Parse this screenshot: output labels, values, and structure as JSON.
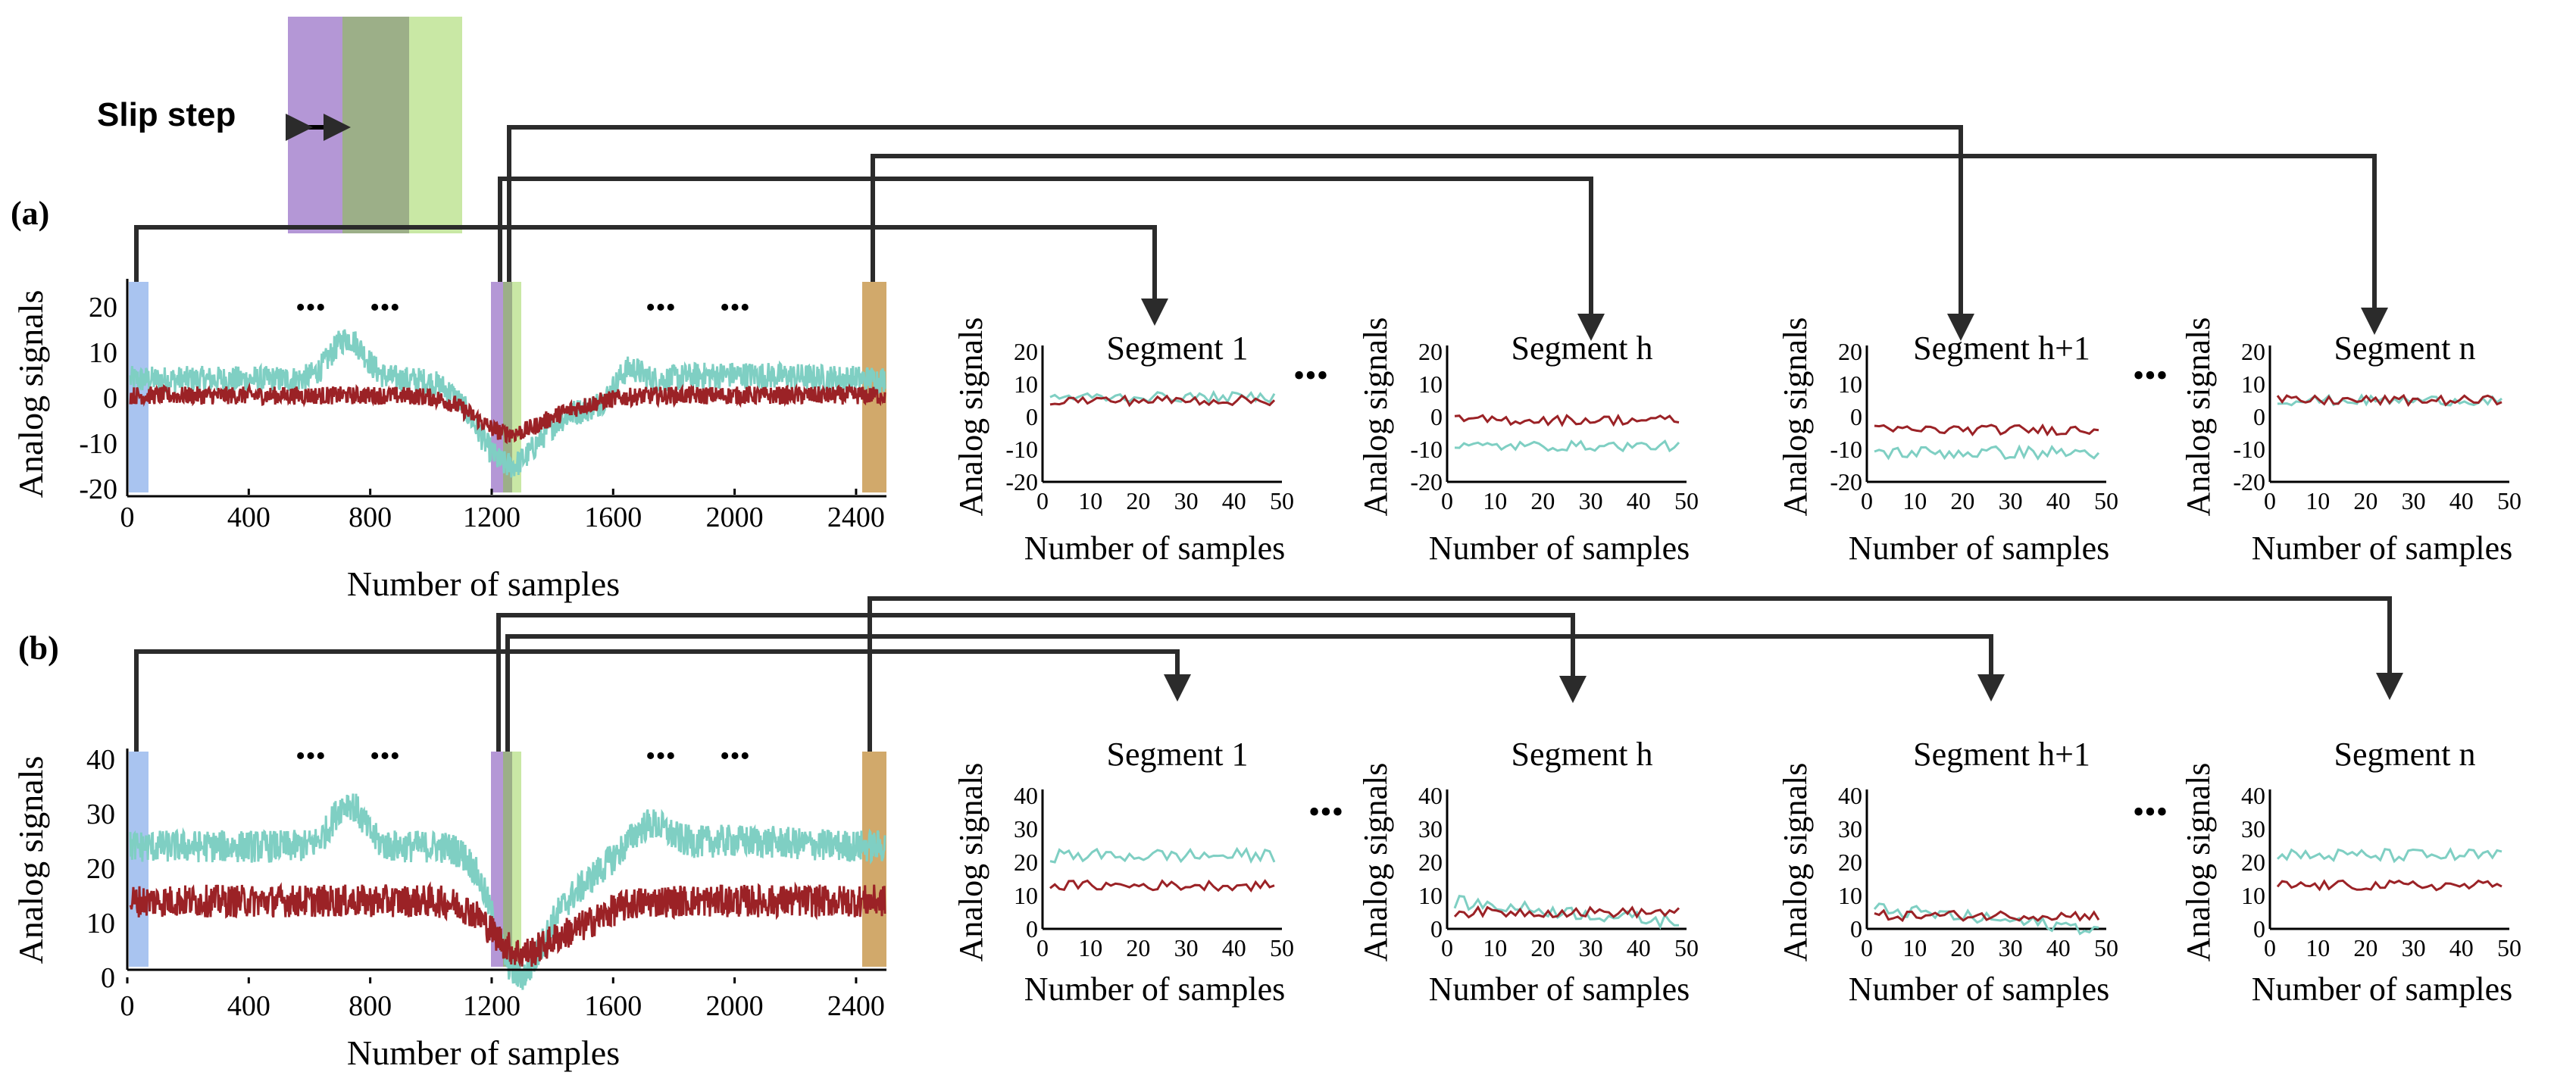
{
  "legend_note": {
    "label": "Slip step",
    "colors": [
      "#b497d6",
      "#9caf88",
      "#c9e8a5"
    ]
  },
  "colors": {
    "cyan": "#7fcfc3",
    "red": "#9b2226",
    "blue_window": "#a9c4f0",
    "purple_window": "#b497d6",
    "green_window": "#c9e8a5",
    "mid_window": "#9caf88",
    "tan_window": "#d1a96b",
    "connector": "#2b2b2b"
  },
  "ellipsis": "•••",
  "panels": [
    {
      "label": "(a)",
      "main": {
        "ylabel": "Analog signals",
        "xlabel": "Number of samples",
        "xticks": [
          "0",
          "400",
          "800",
          "1200",
          "1600",
          "2000",
          "2400"
        ],
        "yticks": [
          "20",
          "10",
          "0",
          "-10",
          "-20"
        ]
      },
      "segments": [
        {
          "title": "Segment 1",
          "xlabel": "Number of samples",
          "ylabel": "Analog signals",
          "xticks": [
            "0",
            "10",
            "20",
            "30",
            "40",
            "50"
          ],
          "yticks": [
            "20",
            "10",
            "0",
            "-10",
            "-20"
          ]
        },
        {
          "title": "Segment h",
          "xlabel": "Number of samples",
          "ylabel": "Analog signals",
          "xticks": [
            "0",
            "10",
            "20",
            "30",
            "40",
            "50"
          ],
          "yticks": [
            "20",
            "10",
            "0",
            "-10",
            "-20"
          ]
        },
        {
          "title": "Segment h+1",
          "xlabel": "Number of samples",
          "ylabel": "Analog signals",
          "xticks": [
            "0",
            "10",
            "20",
            "30",
            "40",
            "50"
          ],
          "yticks": [
            "20",
            "10",
            "0",
            "-10",
            "-20"
          ]
        },
        {
          "title": "Segment n",
          "xlabel": "Number of samples",
          "ylabel": "Analog signals",
          "xticks": [
            "0",
            "10",
            "20",
            "30",
            "40",
            "50"
          ],
          "yticks": [
            "20",
            "10",
            "0",
            "-10",
            "-20"
          ]
        }
      ]
    },
    {
      "label": "(b)",
      "main": {
        "ylabel": "Analog signals",
        "xlabel": "Number of samples",
        "xticks": [
          "0",
          "400",
          "800",
          "1200",
          "1600",
          "2000",
          "2400"
        ],
        "yticks": [
          "40",
          "30",
          "20",
          "10",
          "0"
        ]
      },
      "segments": [
        {
          "title": "Segment 1",
          "xlabel": "Number of samples",
          "ylabel": "Analog signals",
          "xticks": [
            "0",
            "10",
            "20",
            "30",
            "40",
            "50"
          ],
          "yticks": [
            "40",
            "30",
            "20",
            "10",
            "0"
          ]
        },
        {
          "title": "Segment h",
          "xlabel": "Number of samples",
          "ylabel": "Analog signals",
          "xticks": [
            "0",
            "10",
            "20",
            "30",
            "40",
            "50"
          ],
          "yticks": [
            "40",
            "30",
            "20",
            "10",
            "0"
          ]
        },
        {
          "title": "Segment h+1",
          "xlabel": "Number of samples",
          "ylabel": "Analog signals",
          "xticks": [
            "0",
            "10",
            "20",
            "30",
            "40",
            "50"
          ],
          "yticks": [
            "40",
            "30",
            "20",
            "10",
            "0"
          ]
        },
        {
          "title": "Segment n",
          "xlabel": "Number of samples",
          "ylabel": "Analog signals",
          "xticks": [
            "0",
            "10",
            "20",
            "30",
            "40",
            "50"
          ],
          "yticks": [
            "40",
            "30",
            "20",
            "10",
            "0"
          ]
        }
      ]
    }
  ]
}
